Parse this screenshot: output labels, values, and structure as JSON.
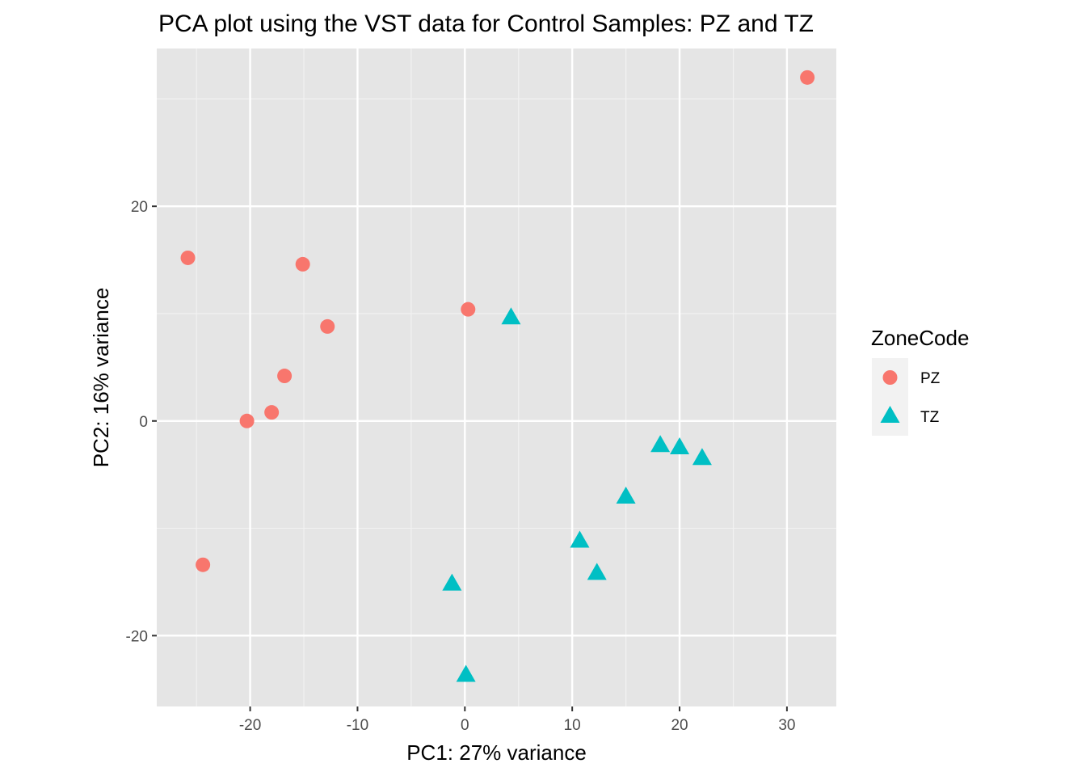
{
  "chart_data": {
    "type": "scatter",
    "title": "PCA plot using the VST data for Control Samples: PZ and TZ",
    "xlabel": "PC1: 27% variance",
    "ylabel": "PC2: 16% variance",
    "xlim": [
      -28.7,
      34.6
    ],
    "ylim": [
      -26.6,
      34.7
    ],
    "x_ticks": [
      -20,
      -10,
      0,
      10,
      20,
      30
    ],
    "x_tick_labels": [
      "-20",
      "-10",
      "0",
      "10",
      "20",
      "30"
    ],
    "y_ticks": [
      -20,
      0,
      20
    ],
    "y_tick_labels": [
      "-20",
      "0",
      "20"
    ],
    "grid": true,
    "legend": {
      "title": "ZoneCode",
      "placement": "right",
      "entries": [
        {
          "label": "PZ",
          "shape": "circle",
          "color": "#F8766D"
        },
        {
          "label": "TZ",
          "shape": "triangle",
          "color": "#00BFC4"
        }
      ]
    },
    "series": [
      {
        "name": "PZ",
        "shape": "circle",
        "color": "#F8766D",
        "points": [
          {
            "x": 31.9,
            "y": 32.0
          },
          {
            "x": -25.8,
            "y": 15.2
          },
          {
            "x": -15.1,
            "y": 14.6
          },
          {
            "x": 0.3,
            "y": 10.4
          },
          {
            "x": -12.8,
            "y": 8.8
          },
          {
            "x": -16.8,
            "y": 4.2
          },
          {
            "x": -18.0,
            "y": 0.8
          },
          {
            "x": -20.3,
            "y": 0.0
          },
          {
            "x": -24.4,
            "y": -13.4
          }
        ]
      },
      {
        "name": "TZ",
        "shape": "triangle",
        "color": "#00BFC4",
        "points": [
          {
            "x": 4.3,
            "y": 9.6
          },
          {
            "x": 18.2,
            "y": -2.3
          },
          {
            "x": 20.0,
            "y": -2.5
          },
          {
            "x": 22.1,
            "y": -3.5
          },
          {
            "x": 15.0,
            "y": -7.1
          },
          {
            "x": 10.7,
            "y": -11.2
          },
          {
            "x": 12.3,
            "y": -14.2
          },
          {
            "x": -1.2,
            "y": -15.2
          },
          {
            "x": 0.1,
            "y": -23.7
          }
        ]
      }
    ]
  }
}
